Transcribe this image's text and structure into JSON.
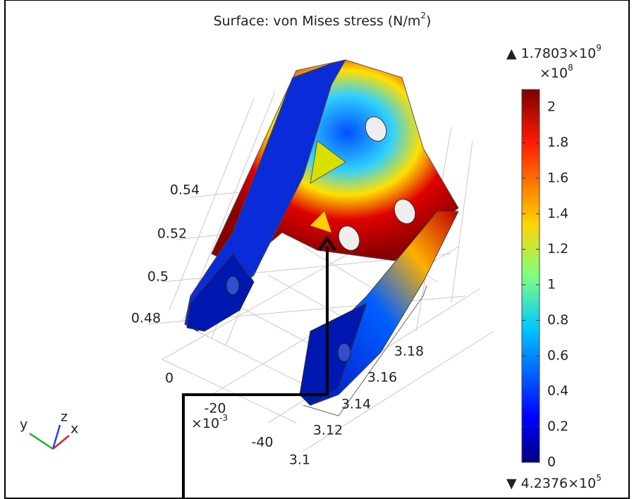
{
  "title": {
    "text": "Surface: von Mises stress (N/m",
    "sup": "2",
    "close": ")"
  },
  "colorbar": {
    "max_label": "▲ 1.7803×10",
    "max_sup": "9",
    "multiplier": "×10",
    "multiplier_sup": "8",
    "range": [
      0,
      2.1
    ],
    "ticks": [
      0,
      0.2,
      0.4,
      0.6,
      0.8,
      1,
      1.2,
      1.4,
      1.6,
      1.8,
      2
    ],
    "min_label": "▼ 4.2376×10",
    "min_sup": "5"
  },
  "axes": {
    "z_ticks": [
      "0.54",
      "0.52",
      "0.5",
      "0.48"
    ],
    "y_ticks": [
      "0",
      "-20",
      "-40"
    ],
    "y_multiplier": "×10",
    "y_multiplier_sup": "-3",
    "x_ticks": [
      "3.18",
      "3.16",
      "3.14",
      "3.12",
      "3.1"
    ]
  },
  "triad": {
    "y": "y",
    "z": "z",
    "x": "x"
  }
}
